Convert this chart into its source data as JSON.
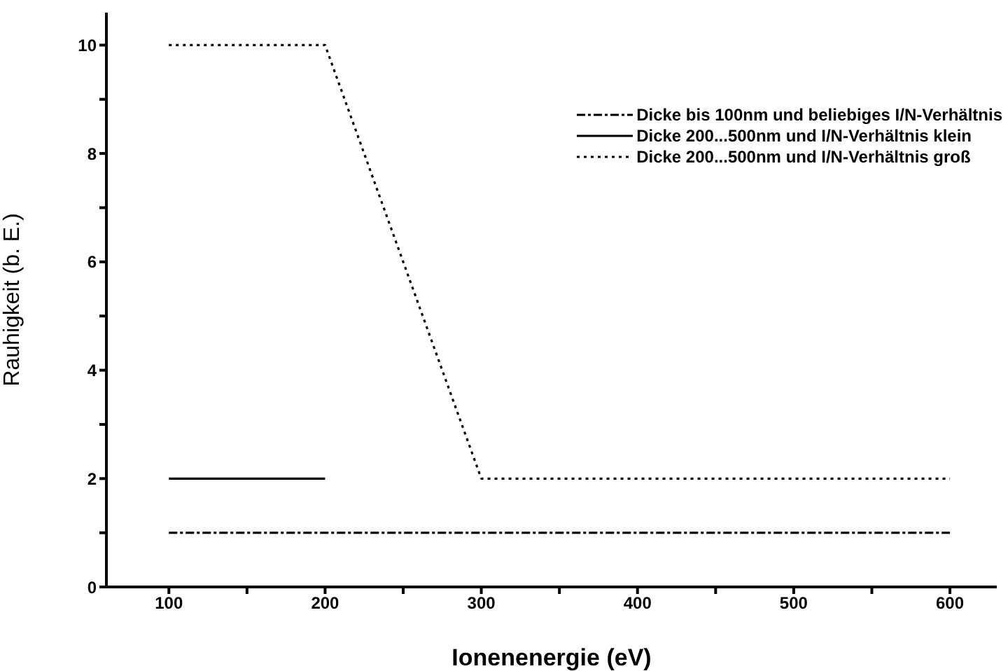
{
  "chart_data": {
    "type": "line",
    "xlabel": "Ionenenergie (eV)",
    "ylabel": "Rauhigkeit (b. E.)",
    "xlim": [
      60,
      630
    ],
    "ylim": [
      0,
      10.6
    ],
    "xticks": [
      100,
      {
        "value": 150,
        "label": null
      },
      200,
      {
        "value": 250,
        "label": null
      },
      300,
      {
        "value": 350,
        "label": null
      },
      400,
      {
        "value": 450,
        "label": null
      },
      500,
      {
        "value": 550,
        "label": null
      },
      600
    ],
    "yticks": [
      0,
      {
        "value": 1,
        "label": null
      },
      2,
      {
        "value": 3,
        "label": null
      },
      4,
      {
        "value": 5,
        "label": null
      },
      6,
      {
        "value": 7,
        "label": null
      },
      8,
      {
        "value": 9,
        "label": null
      },
      10
    ],
    "grid": false,
    "legend": "top right",
    "marker": "none",
    "series": [
      {
        "name": "Dicke bis 100nm und beliebiges I/N-Verhältnis",
        "color": "#000000",
        "line_style": "dashed",
        "x": [
          100,
          600
        ],
        "values": [
          1,
          1
        ]
      },
      {
        "name": "Dicke 200...500nm und I/N-Verhältnis klein",
        "color": "#000000",
        "line_style": "solid",
        "x": [
          100,
          200
        ],
        "values": [
          2,
          2
        ]
      },
      {
        "name": "Dicke 200...500nm und I/N-Verhältnis groß",
        "color": "#000000",
        "line_style": "dotted",
        "x": [
          100,
          200,
          300,
          600
        ],
        "values": [
          10,
          10,
          2,
          2
        ]
      }
    ]
  }
}
